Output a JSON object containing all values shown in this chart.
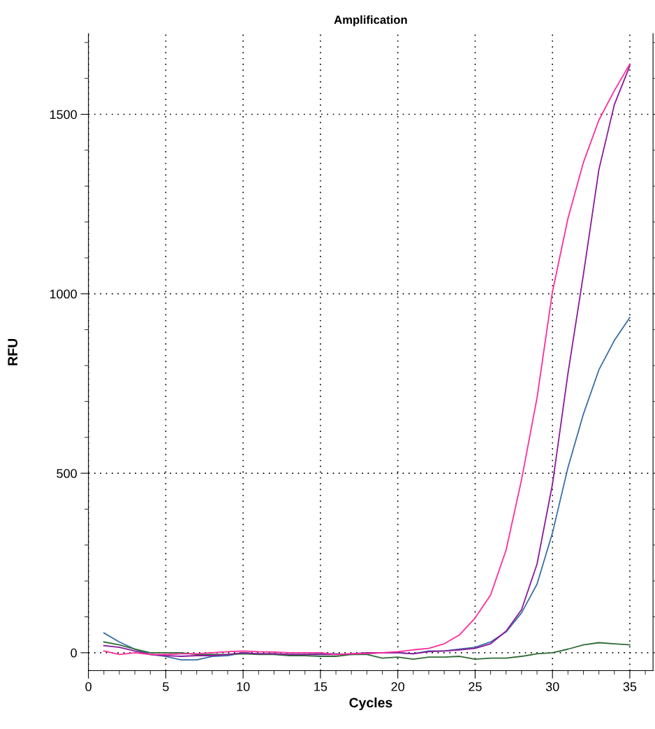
{
  "chart_data": {
    "type": "line",
    "title": "Amplification",
    "xlabel": "Cycles",
    "ylabel": "RFU",
    "x": [
      1,
      2,
      3,
      4,
      5,
      6,
      7,
      8,
      9,
      10,
      11,
      12,
      13,
      14,
      15,
      16,
      17,
      18,
      19,
      20,
      21,
      22,
      23,
      24,
      25,
      26,
      27,
      28,
      29,
      30,
      31,
      32,
      33,
      34,
      35
    ],
    "series": [
      {
        "color": "#3a6ea5",
        "values": [
          55,
          30,
          10,
          -5,
          -10,
          -20,
          -20,
          -10,
          -8,
          0,
          -3,
          -3,
          -5,
          -5,
          -3,
          -3,
          -5,
          -3,
          0,
          0,
          -3,
          5,
          5,
          10,
          15,
          30,
          58,
          111,
          191,
          334,
          516,
          665,
          788,
          870,
          934
        ]
      },
      {
        "color": "#2e6b35",
        "values": [
          30,
          22,
          10,
          0,
          0,
          0,
          -5,
          -5,
          -5,
          -3,
          -5,
          -5,
          -8,
          -8,
          -10,
          -10,
          -5,
          -5,
          -15,
          -12,
          -18,
          -12,
          -12,
          -10,
          -18,
          -15,
          -15,
          -10,
          -3,
          0,
          10,
          22,
          28,
          25,
          22
        ]
      },
      {
        "color": "#8b1a9b",
        "values": [
          20,
          15,
          5,
          -5,
          -8,
          -10,
          -8,
          -8,
          -5,
          0,
          -3,
          -3,
          -5,
          -5,
          -5,
          -5,
          -3,
          0,
          0,
          0,
          -3,
          3,
          5,
          8,
          12,
          25,
          60,
          120,
          247,
          470,
          778,
          1054,
          1346,
          1527,
          1635
        ]
      },
      {
        "color": "#ff2d9a",
        "values": [
          5,
          -5,
          0,
          -5,
          -5,
          -3,
          -3,
          0,
          3,
          5,
          3,
          2,
          0,
          0,
          0,
          -5,
          -3,
          -2,
          0,
          3,
          8,
          12,
          25,
          50,
          97,
          161,
          286,
          482,
          710,
          1006,
          1210,
          1366,
          1484,
          1566,
          1640
        ]
      }
    ],
    "xlim": [
      0,
      36.5
    ],
    "ylim": [
      -50,
      1725
    ],
    "xticks": [
      0,
      5,
      10,
      15,
      20,
      25,
      30,
      35
    ],
    "yticks": [
      0,
      500,
      1000,
      1500
    ],
    "grid": true,
    "marker": "none",
    "line_style": "solid",
    "legend": false
  }
}
